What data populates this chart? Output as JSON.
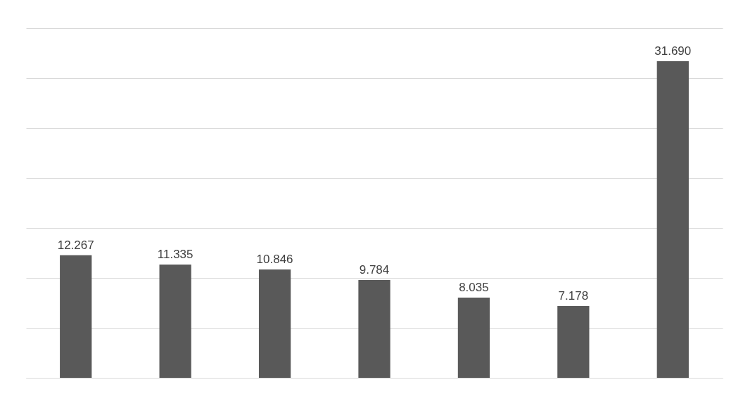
{
  "chart_data": {
    "type": "bar",
    "categories": [
      null,
      null,
      null,
      null,
      null,
      null,
      null
    ],
    "values": [
      12.267,
      11.335,
      10.846,
      9.784,
      8.035,
      7.178,
      31.69
    ],
    "value_labels": [
      "12.267",
      "11.335",
      "10.846",
      "9.784",
      "8.035",
      "7.178",
      "31.690"
    ],
    "color": "#595959",
    "ylim": [
      0,
      35
    ],
    "yticks": [
      {
        "value": 0,
        "label": null
      },
      {
        "value": 5,
        "label": null
      },
      {
        "value": 10,
        "label": null
      },
      {
        "value": 15,
        "label": null
      },
      {
        "value": 20,
        "label": null
      },
      {
        "value": 25,
        "label": null
      },
      {
        "value": 30,
        "label": null
      },
      {
        "value": 35,
        "label": null
      }
    ],
    "grid": "y"
  }
}
